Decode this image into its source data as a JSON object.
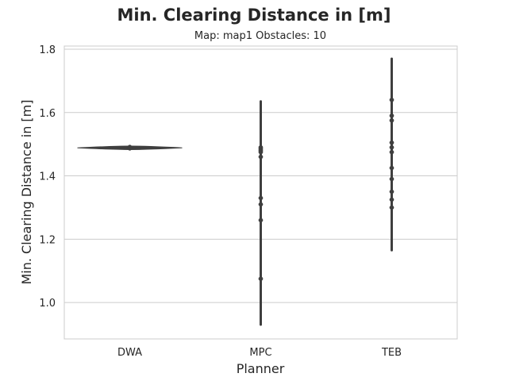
{
  "chart_data": {
    "type": "violin",
    "title": "Min. Clearing Distance in [m]",
    "subtitle": "Map: map1 Obstacles: 10",
    "xlabel": "Planner",
    "ylabel": "Min. Clearing Distance in [m]",
    "ylim": [
      0.885,
      1.81
    ],
    "yticks": [
      1.0,
      1.2,
      1.4,
      1.6,
      1.8
    ],
    "ytick_labels": [
      "1.0",
      "1.2",
      "1.4",
      "1.6",
      "1.8"
    ],
    "grid": true,
    "categories": [
      "DWA",
      "MPC",
      "TEB"
    ],
    "series": [
      {
        "category": "DWA",
        "range": [
          1.485,
          1.492
        ],
        "points": [
          1.489,
          1.491,
          1.488,
          1.49,
          1.487
        ]
      },
      {
        "category": "MPC",
        "range": [
          0.93,
          1.635
        ],
        "points": [
          1.49,
          1.485,
          1.48,
          1.475,
          1.46,
          1.33,
          1.31,
          1.26,
          1.075
        ]
      },
      {
        "category": "TEB",
        "range": [
          1.165,
          1.77
        ],
        "points": [
          1.64,
          1.59,
          1.575,
          1.505,
          1.49,
          1.475,
          1.425,
          1.39,
          1.35,
          1.325,
          1.3
        ]
      }
    ],
    "colors": {
      "axes_edge": "#cccccc",
      "grid": "#cccccc",
      "violin": "#3f3f3f",
      "text": "#262626"
    }
  }
}
